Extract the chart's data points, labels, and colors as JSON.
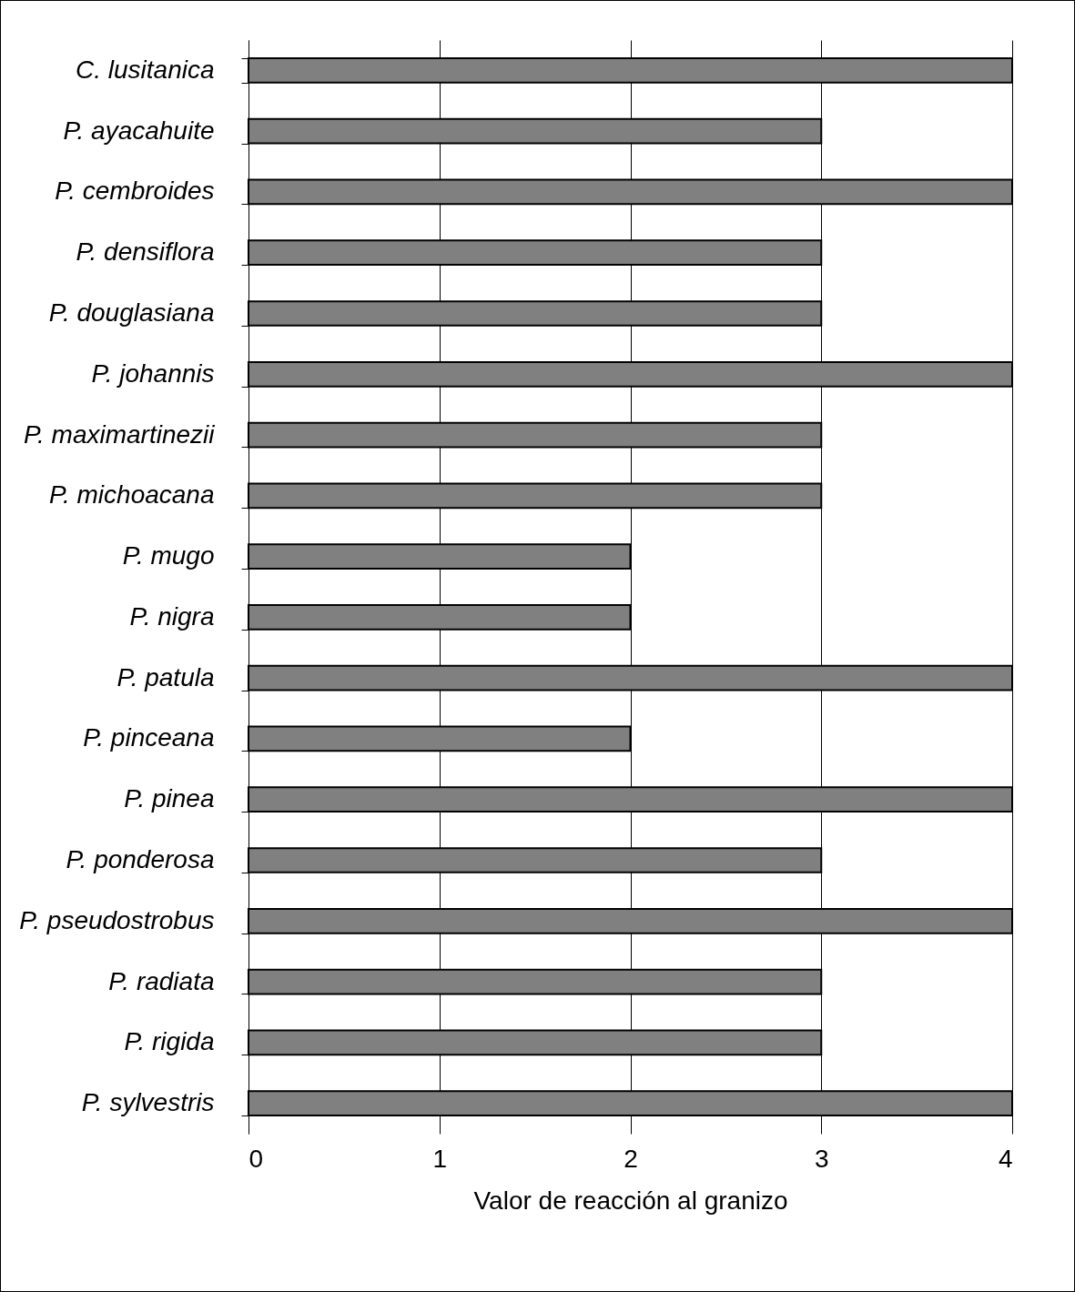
{
  "chart_data": {
    "type": "bar",
    "orientation": "horizontal",
    "xlabel": "Valor de reacción al granizo",
    "categories": [
      "C. lusitanica",
      "P. ayacahuite",
      "P. cembroides",
      "P. densiflora",
      "P. douglasiana",
      "P. johannis",
      "P. maximartinezii",
      "P. michoacana",
      "P. mugo",
      "P. nigra",
      "P. patula",
      "P. pinceana",
      "P. pinea",
      "P. ponderosa",
      "P. pseudostrobus",
      "P. radiata",
      "P. rigida",
      "P. sylvestris"
    ],
    "values": [
      4,
      3,
      4,
      3,
      3,
      4,
      3,
      3,
      2,
      2,
      4,
      2,
      4,
      3,
      4,
      3,
      3,
      4
    ],
    "color": "#808080",
    "xlim": [
      0,
      4
    ],
    "xticks": [
      0,
      1,
      2,
      3,
      4
    ],
    "grid": "x"
  }
}
